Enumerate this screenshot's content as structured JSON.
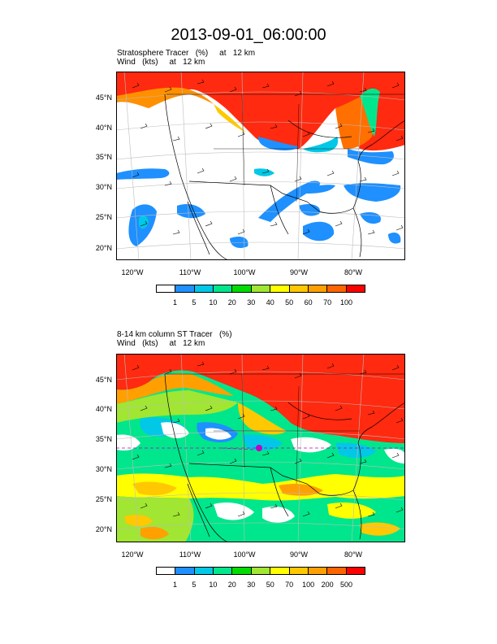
{
  "title": "2013-09-01_06:00:00",
  "panels": [
    {
      "label_line1": "Stratosphere Tracer   (%)     at   12 km",
      "label_line2": "Wind   (kts)     at   12 km",
      "lat_labels": [
        "45°N",
        "40°N",
        "35°N",
        "30°N",
        "25°N",
        "20°N"
      ],
      "lon_labels": [
        "120°W",
        "110°W",
        "100°W",
        "90°W",
        "80°W"
      ],
      "colorbar_colors": [
        "#ffffff",
        "#1e90ff",
        "#00c8e6",
        "#00e68c",
        "#00dc00",
        "#a0e632",
        "#ffff00",
        "#ffc800",
        "#ffa000",
        "#ff6400",
        "#ff0000"
      ],
      "colorbar_labels": [
        "1",
        "5",
        "10",
        "20",
        "30",
        "40",
        "50",
        "60",
        "70",
        "100"
      ]
    },
    {
      "label_line1": "8-14 km column ST Tracer   (%)",
      "label_line2": "Wind   (kts)     at   12 km",
      "lat_labels": [
        "45°N",
        "40°N",
        "35°N",
        "30°N",
        "25°N",
        "20°N"
      ],
      "lon_labels": [
        "120°W",
        "110°W",
        "100°W",
        "90°W",
        "80°W"
      ],
      "colorbar_colors": [
        "#ffffff",
        "#1e90ff",
        "#00c8e6",
        "#00e68c",
        "#00dc00",
        "#a0e632",
        "#ffff00",
        "#ffc800",
        "#ffa000",
        "#ff6400",
        "#ff0000"
      ],
      "colorbar_labels": [
        "1",
        "5",
        "10",
        "20",
        "30",
        "50",
        "70",
        "100",
        "200",
        "500"
      ]
    }
  ]
}
